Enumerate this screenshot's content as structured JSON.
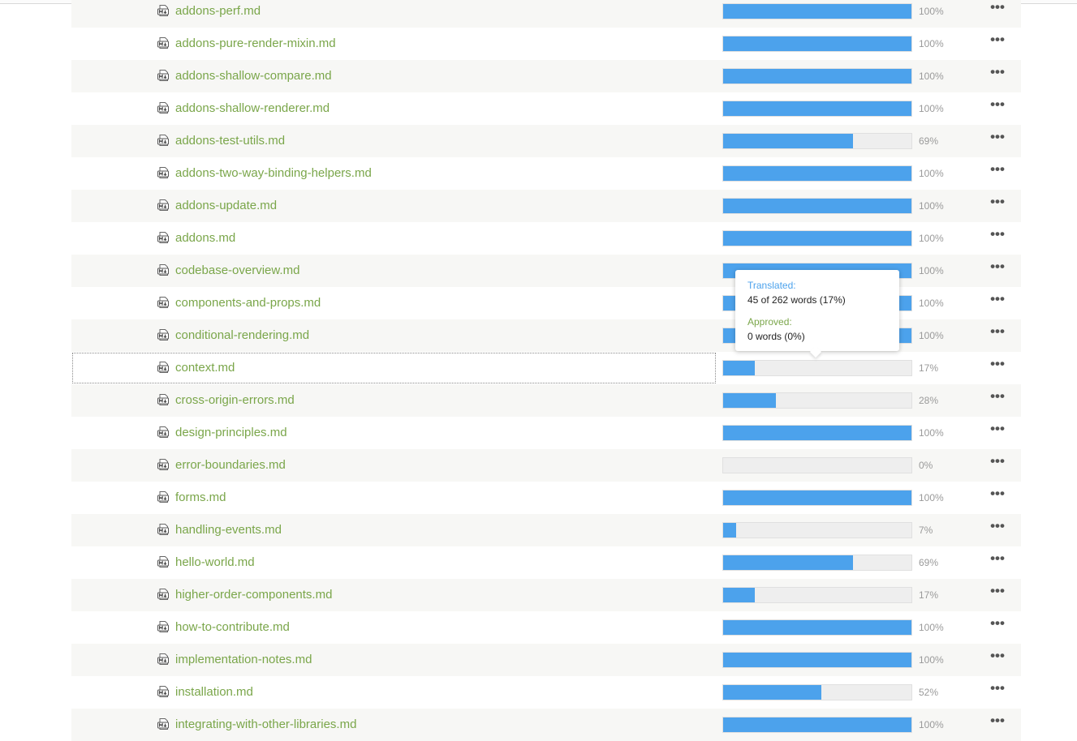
{
  "files": [
    {
      "name": "addons-perf.md",
      "progress": 100,
      "progress_label": "100%"
    },
    {
      "name": "addons-pure-render-mixin.md",
      "progress": 100,
      "progress_label": "100%"
    },
    {
      "name": "addons-shallow-compare.md",
      "progress": 100,
      "progress_label": "100%"
    },
    {
      "name": "addons-shallow-renderer.md",
      "progress": 100,
      "progress_label": "100%"
    },
    {
      "name": "addons-test-utils.md",
      "progress": 69,
      "progress_label": "69%"
    },
    {
      "name": "addons-two-way-binding-helpers.md",
      "progress": 100,
      "progress_label": "100%"
    },
    {
      "name": "addons-update.md",
      "progress": 100,
      "progress_label": "100%"
    },
    {
      "name": "addons.md",
      "progress": 100,
      "progress_label": "100%"
    },
    {
      "name": "codebase-overview.md",
      "progress": 100,
      "progress_label": "100%"
    },
    {
      "name": "components-and-props.md",
      "progress": 100,
      "progress_label": "100%"
    },
    {
      "name": "conditional-rendering.md",
      "progress": 100,
      "progress_label": "100%"
    },
    {
      "name": "context.md",
      "progress": 17,
      "progress_label": "17%",
      "selected": true
    },
    {
      "name": "cross-origin-errors.md",
      "progress": 28,
      "progress_label": "28%"
    },
    {
      "name": "design-principles.md",
      "progress": 100,
      "progress_label": "100%"
    },
    {
      "name": "error-boundaries.md",
      "progress": 0,
      "progress_label": "0%"
    },
    {
      "name": "forms.md",
      "progress": 100,
      "progress_label": "100%"
    },
    {
      "name": "handling-events.md",
      "progress": 7,
      "progress_label": "7%"
    },
    {
      "name": "hello-world.md",
      "progress": 69,
      "progress_label": "69%"
    },
    {
      "name": "higher-order-components.md",
      "progress": 17,
      "progress_label": "17%"
    },
    {
      "name": "how-to-contribute.md",
      "progress": 100,
      "progress_label": "100%"
    },
    {
      "name": "implementation-notes.md",
      "progress": 100,
      "progress_label": "100%"
    },
    {
      "name": "installation.md",
      "progress": 52,
      "progress_label": "52%"
    },
    {
      "name": "integrating-with-other-libraries.md",
      "progress": 100,
      "progress_label": "100%"
    }
  ],
  "file_icon": "markdown-file-icon",
  "more_icon": "more-dots-icon",
  "more_glyph": "•••",
  "tooltip": {
    "translated_label": "Translated:",
    "translated_value": "45 of 262 words (17%)",
    "approved_label": "Approved:",
    "approved_value": "0 words (0%)"
  },
  "colors": {
    "file_name": "#7aa64a",
    "progress_fill": "#4ca2ec",
    "progress_track": "#eeeeee",
    "translated_label": "#4ca2ec",
    "approved_label": "#7aa64a"
  }
}
